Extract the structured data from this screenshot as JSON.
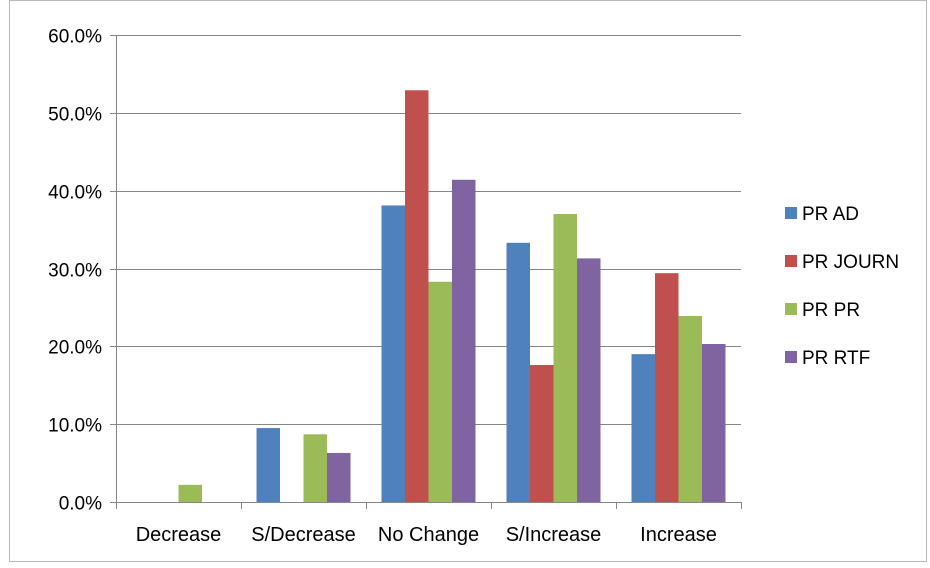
{
  "chart_data": {
    "type": "bar",
    "title": "",
    "xlabel": "",
    "ylabel": "",
    "categories": [
      "Decrease",
      "S/Decrease",
      "No Change",
      "S/Increase",
      "Increase"
    ],
    "series": [
      {
        "name": "PR AD",
        "color": "#4F81BD",
        "values": [
          0.0,
          9.5,
          38.1,
          33.3,
          19.0
        ]
      },
      {
        "name": "PR JOURN",
        "color": "#C0504D",
        "values": [
          0.0,
          0.0,
          52.9,
          17.6,
          29.4
        ]
      },
      {
        "name": "PR PR",
        "color": "#9BBB59",
        "values": [
          2.2,
          8.7,
          28.3,
          37.0,
          23.9
        ]
      },
      {
        "name": "PR RTF",
        "color": "#8064A2",
        "values": [
          0.0,
          6.3,
          41.4,
          31.3,
          20.3
        ]
      }
    ],
    "ylim": [
      0,
      60
    ],
    "yticks": [
      0,
      10,
      20,
      30,
      40,
      50,
      60
    ],
    "ytick_labels": [
      "0.0%",
      "10.0%",
      "20.0%",
      "30.0%",
      "40.0%",
      "50.0%",
      "60.0%"
    ],
    "grid": true,
    "legend_position": "right"
  }
}
